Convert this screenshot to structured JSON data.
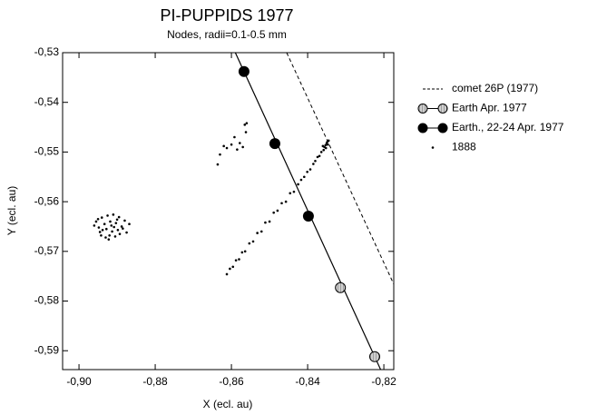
{
  "chart_data": {
    "type": "scatter",
    "title": "PI-PUPPIDS 1977",
    "subtitle": "Nodes, radii=0.1-0.5 mm",
    "xlabel": "X (ecl. au)",
    "ylabel": "Y (ecl. au)",
    "xlim": [
      -0.9043,
      -0.8174
    ],
    "ylim": [
      -0.5938,
      -0.53
    ],
    "xticks": [
      {
        "value": -0.9,
        "label": "-0,90"
      },
      {
        "value": -0.88,
        "label": "-0,88"
      },
      {
        "value": -0.86,
        "label": "-0,86"
      },
      {
        "value": -0.84,
        "label": "-0,84"
      },
      {
        "value": -0.82,
        "label": "-0,82"
      }
    ],
    "yticks": [
      {
        "value": -0.53,
        "label": "-0,53"
      },
      {
        "value": -0.54,
        "label": "-0,54"
      },
      {
        "value": -0.55,
        "label": "-0,55"
      },
      {
        "value": -0.56,
        "label": "-0,56"
      },
      {
        "value": -0.57,
        "label": "-0,57"
      },
      {
        "value": -0.58,
        "label": "-0,58"
      },
      {
        "value": -0.59,
        "label": "-0,59"
      }
    ],
    "legend": "right",
    "series": [
      {
        "name": "comet 26P (1977)",
        "style": "dashed",
        "color": "#000000",
        "x": [
          -0.8455,
          -0.8174
        ],
        "values": [
          -0.53,
          -0.5766
        ]
      },
      {
        "name": "Earth Apr. 1977",
        "style": "hatched",
        "color": "#bbbbbb",
        "x": [
          -0.8314,
          -0.8224
        ],
        "values": [
          -0.5773,
          -0.5912
        ]
      },
      {
        "name": "Earth., 22-24 Apr. 1977",
        "style": "filled",
        "color": "#000000",
        "x": [
          -0.8567,
          -0.8486,
          -0.8398
        ],
        "values": [
          -0.5338,
          -0.5483,
          -0.5629
        ]
      },
      {
        "name": "1888",
        "style": "dots",
        "color": "#000000",
        "x": [
          -0.8955,
          -0.894,
          -0.8925,
          -0.891,
          -0.8895,
          -0.888,
          -0.8868,
          -0.8948,
          -0.8933,
          -0.8918,
          -0.8903,
          -0.8888,
          -0.8928,
          -0.8913,
          -0.896,
          -0.8898,
          -0.8875,
          -0.8945,
          -0.892,
          -0.8905,
          -0.893,
          -0.895,
          -0.89,
          -0.8885,
          -0.8915,
          -0.8938,
          -0.8893,
          -0.8908,
          -0.8942,
          -0.8922,
          -0.8636,
          -0.863,
          -0.862,
          -0.8612,
          -0.86,
          -0.8592,
          -0.8585,
          -0.8578,
          -0.857,
          -0.8565,
          -0.8562,
          -0.856,
          -0.8612,
          -0.8604,
          -0.8596,
          -0.8588,
          -0.858,
          -0.8572,
          -0.8564,
          -0.8553,
          -0.8543,
          -0.8532,
          -0.8521,
          -0.8511,
          -0.85,
          -0.8489,
          -0.8479,
          -0.8468,
          -0.8457,
          -0.8446,
          -0.8436,
          -0.8425,
          -0.8417,
          -0.8409,
          -0.8401,
          -0.8393,
          -0.8385,
          -0.838,
          -0.8374,
          -0.8369,
          -0.8364,
          -0.8358,
          -0.8356,
          -0.8353,
          -0.835,
          -0.8348,
          -0.8345,
          -0.8352,
          -0.836,
          -0.8347
        ],
        "values": [
          -0.564,
          -0.5632,
          -0.5628,
          -0.5626,
          -0.5631,
          -0.5638,
          -0.5645,
          -0.5652,
          -0.5645,
          -0.564,
          -0.5643,
          -0.565,
          -0.5655,
          -0.566,
          -0.5648,
          -0.5657,
          -0.5662,
          -0.5661,
          -0.5668,
          -0.567,
          -0.5672,
          -0.5635,
          -0.5636,
          -0.5654,
          -0.5648,
          -0.5657,
          -0.5665,
          -0.5651,
          -0.5668,
          -0.5676,
          -0.5525,
          -0.5505,
          -0.5488,
          -0.5492,
          -0.5485,
          -0.547,
          -0.5495,
          -0.5482,
          -0.549,
          -0.5445,
          -0.546,
          -0.5442,
          -0.5746,
          -0.5735,
          -0.5731,
          -0.5718,
          -0.5716,
          -0.5702,
          -0.57,
          -0.5684,
          -0.568,
          -0.5663,
          -0.566,
          -0.5642,
          -0.564,
          -0.5622,
          -0.5618,
          -0.5603,
          -0.56,
          -0.5583,
          -0.558,
          -0.5565,
          -0.5556,
          -0.555,
          -0.554,
          -0.5535,
          -0.5524,
          -0.5518,
          -0.551,
          -0.5508,
          -0.55,
          -0.5496,
          -0.549,
          -0.5486,
          -0.5482,
          -0.5479,
          -0.5477,
          -0.5492,
          -0.5488,
          -0.5485
        ]
      }
    ]
  }
}
